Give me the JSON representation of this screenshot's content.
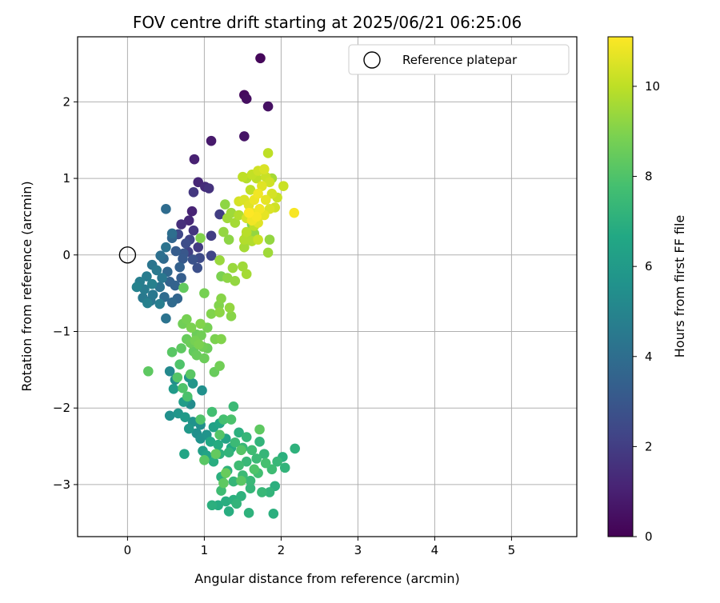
{
  "chart_data": {
    "type": "scatter",
    "title": "FOV centre drift starting at 2025/06/21 06:25:06",
    "xlabel": "Angular distance from reference (arcmin)",
    "ylabel": "Rotation from reference (arcmin)",
    "xlim": [
      -0.65,
      5.85
    ],
    "ylim": [
      -3.68,
      2.85
    ],
    "xticks": [
      "0",
      "1",
      "2",
      "3",
      "4",
      "5"
    ],
    "yticks": [
      "−3",
      "−2",
      "−1",
      "0",
      "1",
      "2"
    ],
    "grid": true,
    "legend": {
      "placement": "top-right",
      "entries": [
        "Reference platepar"
      ]
    },
    "reference_point": {
      "x": 0,
      "y": 0
    },
    "colorbar": {
      "label": "Hours from first FF file",
      "range": [
        0,
        11.1
      ],
      "ticks": [
        "0",
        "2",
        "4",
        "6",
        "8",
        "10"
      ],
      "colormap": "viridis"
    },
    "points": [
      {
        "x": 1.73,
        "y": 2.57,
        "h": 0.2
      },
      {
        "x": 1.52,
        "y": 2.09,
        "h": 0.3
      },
      {
        "x": 1.55,
        "y": 2.04,
        "h": 0.4
      },
      {
        "x": 1.83,
        "y": 1.94,
        "h": 0.5
      },
      {
        "x": 1.52,
        "y": 1.55,
        "h": 0.6
      },
      {
        "x": 1.09,
        "y": 1.49,
        "h": 0.8
      },
      {
        "x": 0.87,
        "y": 1.25,
        "h": 1.0
      },
      {
        "x": 0.92,
        "y": 0.95,
        "h": 1.2
      },
      {
        "x": 1.01,
        "y": 0.89,
        "h": 1.4
      },
      {
        "x": 1.06,
        "y": 0.87,
        "h": 1.6
      },
      {
        "x": 0.86,
        "y": 0.82,
        "h": 1.8
      },
      {
        "x": 0.84,
        "y": 0.57,
        "h": 1.1
      },
      {
        "x": 0.8,
        "y": 0.45,
        "h": 1.3
      },
      {
        "x": 0.7,
        "y": 0.4,
        "h": 1.5
      },
      {
        "x": 0.86,
        "y": 0.32,
        "h": 1.7
      },
      {
        "x": 1.09,
        "y": 0.25,
        "h": 2.0
      },
      {
        "x": 0.81,
        "y": 0.2,
        "h": 2.2
      },
      {
        "x": 0.66,
        "y": 0.27,
        "h": 2.4
      },
      {
        "x": 0.76,
        "y": 0.15,
        "h": 2.6
      },
      {
        "x": 0.92,
        "y": 0.1,
        "h": 1.9
      },
      {
        "x": 0.79,
        "y": 0.04,
        "h": 2.1
      },
      {
        "x": 1.09,
        "y": -0.01,
        "h": 2.3
      },
      {
        "x": 0.94,
        "y": -0.04,
        "h": 2.5
      },
      {
        "x": 0.85,
        "y": -0.06,
        "h": 2.8
      },
      {
        "x": 0.73,
        "y": 0.02,
        "h": 3.0
      },
      {
        "x": 0.63,
        "y": 0.05,
        "h": 3.2
      },
      {
        "x": 0.68,
        "y": -0.16,
        "h": 3.4
      },
      {
        "x": 0.91,
        "y": -0.17,
        "h": 2.7
      },
      {
        "x": 1.2,
        "y": 0.53,
        "h": 2.0
      },
      {
        "x": 0.58,
        "y": 0.22,
        "h": 3.6
      },
      {
        "x": 0.5,
        "y": 0.6,
        "h": 3.9
      },
      {
        "x": 0.58,
        "y": 0.28,
        "h": 4.0
      },
      {
        "x": 0.5,
        "y": 0.1,
        "h": 4.2
      },
      {
        "x": 0.43,
        "y": -0.01,
        "h": 4.1
      },
      {
        "x": 0.47,
        "y": -0.05,
        "h": 3.8
      },
      {
        "x": 0.32,
        "y": -0.13,
        "h": 4.3
      },
      {
        "x": 0.38,
        "y": -0.2,
        "h": 4.5
      },
      {
        "x": 0.52,
        "y": -0.22,
        "h": 3.7
      },
      {
        "x": 0.45,
        "y": -0.3,
        "h": 4.4
      },
      {
        "x": 0.55,
        "y": -0.35,
        "h": 3.5
      },
      {
        "x": 0.25,
        "y": -0.28,
        "h": 4.6
      },
      {
        "x": 0.16,
        "y": -0.35,
        "h": 4.7
      },
      {
        "x": 0.32,
        "y": -0.38,
        "h": 4.8
      },
      {
        "x": 0.42,
        "y": -0.42,
        "h": 4.2
      },
      {
        "x": 0.48,
        "y": -0.55,
        "h": 3.9
      },
      {
        "x": 0.12,
        "y": -0.42,
        "h": 4.9
      },
      {
        "x": 0.22,
        "y": -0.45,
        "h": 4.6
      },
      {
        "x": 0.33,
        "y": -0.52,
        "h": 4.4
      },
      {
        "x": 0.2,
        "y": -0.56,
        "h": 4.5
      },
      {
        "x": 0.3,
        "y": -0.6,
        "h": 4.3
      },
      {
        "x": 0.42,
        "y": -0.64,
        "h": 4.7
      },
      {
        "x": 0.26,
        "y": -0.63,
        "h": 4.8
      },
      {
        "x": 0.58,
        "y": -0.62,
        "h": 3.8
      },
      {
        "x": 0.65,
        "y": -0.57,
        "h": 3.6
      },
      {
        "x": 0.62,
        "y": -0.4,
        "h": 3.5
      },
      {
        "x": 0.7,
        "y": -0.3,
        "h": 3.3
      },
      {
        "x": 0.5,
        "y": -0.83,
        "h": 4.2
      },
      {
        "x": 0.72,
        "y": -0.05,
        "h": 3.1
      },
      {
        "x": 0.95,
        "y": 0.22,
        "h": 9.0
      },
      {
        "x": 1.27,
        "y": 0.66,
        "h": 9.2
      },
      {
        "x": 1.2,
        "y": -0.07,
        "h": 9.4
      },
      {
        "x": 0.73,
        "y": -0.43,
        "h": 8.4
      },
      {
        "x": 1.22,
        "y": -0.28,
        "h": 8.9
      },
      {
        "x": 1.3,
        "y": -0.3,
        "h": 9.2
      },
      {
        "x": 1.4,
        "y": -0.34,
        "h": 9.3
      },
      {
        "x": 1.37,
        "y": -0.17,
        "h": 9.4
      },
      {
        "x": 1.5,
        "y": -0.15,
        "h": 9.5
      },
      {
        "x": 1.55,
        "y": -0.25,
        "h": 9.6
      },
      {
        "x": 1.0,
        "y": -0.5,
        "h": 8.8
      },
      {
        "x": 1.22,
        "y": -0.57,
        "h": 9.1
      },
      {
        "x": 1.19,
        "y": -0.66,
        "h": 9.0
      },
      {
        "x": 1.33,
        "y": -0.69,
        "h": 9.3
      },
      {
        "x": 1.2,
        "y": -0.75,
        "h": 9.2
      },
      {
        "x": 1.35,
        "y": -0.8,
        "h": 9.1
      },
      {
        "x": 1.09,
        "y": -0.77,
        "h": 9.0
      },
      {
        "x": 0.77,
        "y": -0.84,
        "h": 8.8
      },
      {
        "x": 0.72,
        "y": -0.9,
        "h": 8.7
      },
      {
        "x": 0.83,
        "y": -0.95,
        "h": 8.9
      },
      {
        "x": 0.95,
        "y": -0.9,
        "h": 9.0
      },
      {
        "x": 1.04,
        "y": -0.95,
        "h": 8.8
      },
      {
        "x": 0.9,
        "y": -1.04,
        "h": 8.6
      },
      {
        "x": 0.96,
        "y": -1.05,
        "h": 8.7
      },
      {
        "x": 0.77,
        "y": -1.1,
        "h": 8.5
      },
      {
        "x": 0.82,
        "y": -1.15,
        "h": 8.6
      },
      {
        "x": 0.88,
        "y": -1.12,
        "h": 8.8
      },
      {
        "x": 0.93,
        "y": -1.17,
        "h": 8.9
      },
      {
        "x": 0.98,
        "y": -1.2,
        "h": 8.7
      },
      {
        "x": 1.04,
        "y": -1.22,
        "h": 8.6
      },
      {
        "x": 0.86,
        "y": -1.26,
        "h": 8.4
      },
      {
        "x": 0.7,
        "y": -1.22,
        "h": 8.3
      },
      {
        "x": 0.58,
        "y": -1.27,
        "h": 8.2
      },
      {
        "x": 0.9,
        "y": -1.31,
        "h": 8.5
      },
      {
        "x": 1.0,
        "y": -1.35,
        "h": 8.6
      },
      {
        "x": 1.14,
        "y": -1.1,
        "h": 8.9
      },
      {
        "x": 1.22,
        "y": -1.1,
        "h": 9.0
      },
      {
        "x": 1.2,
        "y": -1.45,
        "h": 8.7
      },
      {
        "x": 1.13,
        "y": -1.53,
        "h": 8.5
      },
      {
        "x": 0.82,
        "y": -1.56,
        "h": 8.2
      },
      {
        "x": 0.68,
        "y": -1.43,
        "h": 8.0
      },
      {
        "x": 0.65,
        "y": -1.6,
        "h": 8.1
      },
      {
        "x": 0.27,
        "y": -1.52,
        "h": 8.3
      },
      {
        "x": 0.72,
        "y": -1.74,
        "h": 8.0
      },
      {
        "x": 0.78,
        "y": -1.85,
        "h": 7.9
      },
      {
        "x": 0.55,
        "y": -1.52,
        "h": 5.2
      },
      {
        "x": 0.62,
        "y": -1.63,
        "h": 5.4
      },
      {
        "x": 0.8,
        "y": -1.6,
        "h": 5.6
      },
      {
        "x": 0.85,
        "y": -1.68,
        "h": 5.8
      },
      {
        "x": 0.97,
        "y": -1.77,
        "h": 5.5
      },
      {
        "x": 0.6,
        "y": -1.75,
        "h": 6.0
      },
      {
        "x": 0.78,
        "y": -1.88,
        "h": 5.7
      },
      {
        "x": 0.82,
        "y": -1.95,
        "h": 5.3
      },
      {
        "x": 0.73,
        "y": -1.92,
        "h": 6.1
      },
      {
        "x": 0.55,
        "y": -2.1,
        "h": 5.5
      },
      {
        "x": 0.66,
        "y": -2.07,
        "h": 5.8
      },
      {
        "x": 0.75,
        "y": -2.12,
        "h": 6.0
      },
      {
        "x": 0.85,
        "y": -2.18,
        "h": 5.6
      },
      {
        "x": 0.95,
        "y": -2.22,
        "h": 5.4
      },
      {
        "x": 0.8,
        "y": -2.27,
        "h": 5.9
      },
      {
        "x": 0.9,
        "y": -2.33,
        "h": 5.5
      },
      {
        "x": 0.95,
        "y": -2.4,
        "h": 5.6
      },
      {
        "x": 1.03,
        "y": -2.35,
        "h": 5.7
      },
      {
        "x": 1.12,
        "y": -2.25,
        "h": 6.3
      },
      {
        "x": 1.2,
        "y": -2.2,
        "h": 6.5
      },
      {
        "x": 1.28,
        "y": -2.4,
        "h": 6.4
      },
      {
        "x": 1.08,
        "y": -2.44,
        "h": 6.6
      },
      {
        "x": 1.18,
        "y": -2.48,
        "h": 6.8
      },
      {
        "x": 1.35,
        "y": -2.52,
        "h": 6.7
      },
      {
        "x": 0.98,
        "y": -2.56,
        "h": 6.2
      },
      {
        "x": 0.74,
        "y": -2.6,
        "h": 6.5
      },
      {
        "x": 1.03,
        "y": -2.62,
        "h": 6.4
      },
      {
        "x": 1.12,
        "y": -2.7,
        "h": 6.9
      },
      {
        "x": 1.2,
        "y": -2.6,
        "h": 7.1
      },
      {
        "x": 1.32,
        "y": -2.58,
        "h": 7.2
      },
      {
        "x": 1.45,
        "y": -2.32,
        "h": 7.0
      },
      {
        "x": 1.55,
        "y": -2.38,
        "h": 7.3
      },
      {
        "x": 1.4,
        "y": -2.45,
        "h": 7.5
      },
      {
        "x": 1.5,
        "y": -2.52,
        "h": 7.4
      },
      {
        "x": 1.62,
        "y": -2.55,
        "h": 7.6
      },
      {
        "x": 1.72,
        "y": -2.44,
        "h": 7.2
      },
      {
        "x": 1.78,
        "y": -2.6,
        "h": 7.3
      },
      {
        "x": 1.68,
        "y": -2.66,
        "h": 7.5
      },
      {
        "x": 1.55,
        "y": -2.7,
        "h": 7.4
      },
      {
        "x": 1.45,
        "y": -2.75,
        "h": 7.6
      },
      {
        "x": 1.3,
        "y": -2.82,
        "h": 7.1
      },
      {
        "x": 1.22,
        "y": -2.9,
        "h": 7.0
      },
      {
        "x": 1.38,
        "y": -2.96,
        "h": 7.3
      },
      {
        "x": 1.5,
        "y": -2.88,
        "h": 7.5
      },
      {
        "x": 1.6,
        "y": -2.95,
        "h": 7.4
      },
      {
        "x": 1.7,
        "y": -2.85,
        "h": 7.7
      },
      {
        "x": 1.8,
        "y": -2.72,
        "h": 7.8
      },
      {
        "x": 1.88,
        "y": -2.8,
        "h": 7.6
      },
      {
        "x": 1.95,
        "y": -2.7,
        "h": 7.4
      },
      {
        "x": 2.02,
        "y": -2.64,
        "h": 7.0
      },
      {
        "x": 2.05,
        "y": -2.78,
        "h": 7.2
      },
      {
        "x": 2.18,
        "y": -2.53,
        "h": 7.1
      },
      {
        "x": 1.92,
        "y": -3.02,
        "h": 7.0
      },
      {
        "x": 1.85,
        "y": -3.1,
        "h": 7.2
      },
      {
        "x": 1.75,
        "y": -3.1,
        "h": 7.4
      },
      {
        "x": 1.6,
        "y": -3.05,
        "h": 7.3
      },
      {
        "x": 1.48,
        "y": -3.15,
        "h": 7.1
      },
      {
        "x": 1.38,
        "y": -3.2,
        "h": 7.0
      },
      {
        "x": 1.28,
        "y": -3.22,
        "h": 6.9
      },
      {
        "x": 1.18,
        "y": -3.27,
        "h": 6.8
      },
      {
        "x": 1.1,
        "y": -3.27,
        "h": 7.0
      },
      {
        "x": 1.42,
        "y": -3.25,
        "h": 7.2
      },
      {
        "x": 1.32,
        "y": -3.35,
        "h": 6.9
      },
      {
        "x": 1.58,
        "y": -3.37,
        "h": 7.1
      },
      {
        "x": 1.9,
        "y": -3.38,
        "h": 7.0
      },
      {
        "x": 1.22,
        "y": -3.08,
        "h": 7.6
      },
      {
        "x": 1.38,
        "y": -1.98,
        "h": 7.5
      },
      {
        "x": 1.35,
        "y": -2.15,
        "h": 7.9
      },
      {
        "x": 1.25,
        "y": -2.15,
        "h": 7.8
      },
      {
        "x": 1.1,
        "y": -2.05,
        "h": 7.7
      },
      {
        "x": 0.95,
        "y": -2.15,
        "h": 8.0
      },
      {
        "x": 1.2,
        "y": -2.35,
        "h": 8.1
      },
      {
        "x": 1.0,
        "y": -2.68,
        "h": 8.2
      },
      {
        "x": 1.15,
        "y": -2.6,
        "h": 8.4
      },
      {
        "x": 1.48,
        "y": -2.55,
        "h": 8.1
      },
      {
        "x": 1.72,
        "y": -2.28,
        "h": 8.3
      },
      {
        "x": 1.65,
        "y": -2.8,
        "h": 8.0
      },
      {
        "x": 1.28,
        "y": -2.85,
        "h": 8.5
      },
      {
        "x": 1.48,
        "y": -2.95,
        "h": 8.2
      },
      {
        "x": 1.25,
        "y": -2.98,
        "h": 8.3
      },
      {
        "x": 1.52,
        "y": 0.1,
        "h": 9.6
      },
      {
        "x": 1.52,
        "y": 0.2,
        "h": 9.8
      },
      {
        "x": 1.55,
        "y": 0.25,
        "h": 9.7
      },
      {
        "x": 1.62,
        "y": 0.18,
        "h": 9.8
      },
      {
        "x": 1.7,
        "y": 0.2,
        "h": 10.2
      },
      {
        "x": 1.83,
        "y": 0.03,
        "h": 9.5
      },
      {
        "x": 1.85,
        "y": 0.2,
        "h": 9.3
      },
      {
        "x": 1.55,
        "y": 0.3,
        "h": 9.9
      },
      {
        "x": 1.65,
        "y": 0.38,
        "h": 10.0
      },
      {
        "x": 1.4,
        "y": 0.42,
        "h": 9.6
      },
      {
        "x": 1.45,
        "y": 0.52,
        "h": 9.8
      },
      {
        "x": 1.3,
        "y": 0.48,
        "h": 9.5
      },
      {
        "x": 1.55,
        "y": 0.48,
        "h": 10.4
      },
      {
        "x": 1.62,
        "y": 0.55,
        "h": 10.8
      },
      {
        "x": 1.68,
        "y": 0.5,
        "h": 11.0
      },
      {
        "x": 1.72,
        "y": 0.6,
        "h": 10.9
      },
      {
        "x": 1.78,
        "y": 0.52,
        "h": 10.7
      },
      {
        "x": 1.85,
        "y": 0.6,
        "h": 10.5
      },
      {
        "x": 1.92,
        "y": 0.62,
        "h": 10.3
      },
      {
        "x": 1.58,
        "y": 0.65,
        "h": 10.6
      },
      {
        "x": 1.65,
        "y": 0.72,
        "h": 10.8
      },
      {
        "x": 1.52,
        "y": 0.72,
        "h": 10.5
      },
      {
        "x": 1.45,
        "y": 0.7,
        "h": 10.4
      },
      {
        "x": 1.7,
        "y": 0.8,
        "h": 10.9
      },
      {
        "x": 1.8,
        "y": 0.72,
        "h": 10.7
      },
      {
        "x": 1.88,
        "y": 0.8,
        "h": 10.4
      },
      {
        "x": 1.95,
        "y": 0.75,
        "h": 10.2
      },
      {
        "x": 1.6,
        "y": 0.85,
        "h": 10.0
      },
      {
        "x": 1.75,
        "y": 0.9,
        "h": 10.6
      },
      {
        "x": 1.85,
        "y": 0.95,
        "h": 10.3
      },
      {
        "x": 1.62,
        "y": 1.05,
        "h": 10.1
      },
      {
        "x": 1.7,
        "y": 1.1,
        "h": 10.3
      },
      {
        "x": 1.78,
        "y": 1.12,
        "h": 10.5
      },
      {
        "x": 1.55,
        "y": 1.0,
        "h": 9.8
      },
      {
        "x": 1.68,
        "y": 1.0,
        "h": 10.0
      },
      {
        "x": 1.8,
        "y": 1.02,
        "h": 10.2
      },
      {
        "x": 1.5,
        "y": 1.02,
        "h": 10.0
      },
      {
        "x": 1.88,
        "y": 1.0,
        "h": 9.6
      },
      {
        "x": 2.03,
        "y": 0.9,
        "h": 10.2
      },
      {
        "x": 1.83,
        "y": 1.33,
        "h": 10.0
      },
      {
        "x": 2.17,
        "y": 0.55,
        "h": 11.0
      },
      {
        "x": 1.58,
        "y": 0.55,
        "h": 11.1
      },
      {
        "x": 1.62,
        "y": 0.45,
        "h": 10.9
      },
      {
        "x": 1.7,
        "y": 0.42,
        "h": 10.6
      },
      {
        "x": 1.35,
        "y": 0.55,
        "h": 9.5
      },
      {
        "x": 1.25,
        "y": 0.3,
        "h": 9.3
      },
      {
        "x": 1.32,
        "y": 0.2,
        "h": 9.2
      },
      {
        "x": 1.62,
        "y": 0.4,
        "h": 9.0
      },
      {
        "x": 1.65,
        "y": 0.28,
        "h": 9.3
      }
    ]
  }
}
